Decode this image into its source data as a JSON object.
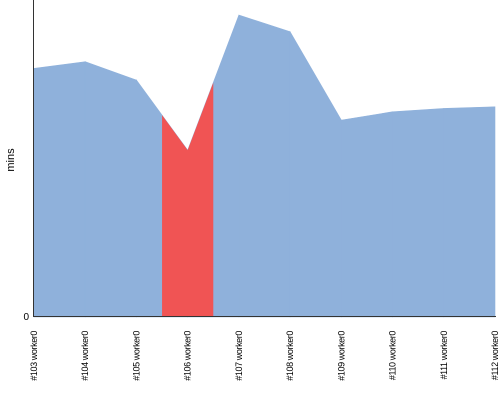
{
  "chart_data": {
    "type": "area",
    "ylabel": "mins",
    "ylim": [
      0,
      19
    ],
    "y_tick_labels": [
      "0"
    ],
    "categories": [
      "#103 worker0",
      "#104 worker0",
      "#105 worker0",
      "#106 worker0",
      "#107 worker0",
      "#108 worker0",
      "#109 worker0",
      "#110 worker0",
      "#111 worker0",
      "#112 worker0"
    ],
    "values": [
      14.9,
      15.3,
      14.2,
      10.0,
      18.1,
      17.1,
      11.8,
      12.3,
      12.5,
      12.6
    ],
    "highlighted_category": "#106 worker0",
    "colors": {
      "series": "#8fb1db",
      "highlight": "#f05454",
      "axis": "#333333"
    },
    "grid": false,
    "legend": "none"
  }
}
